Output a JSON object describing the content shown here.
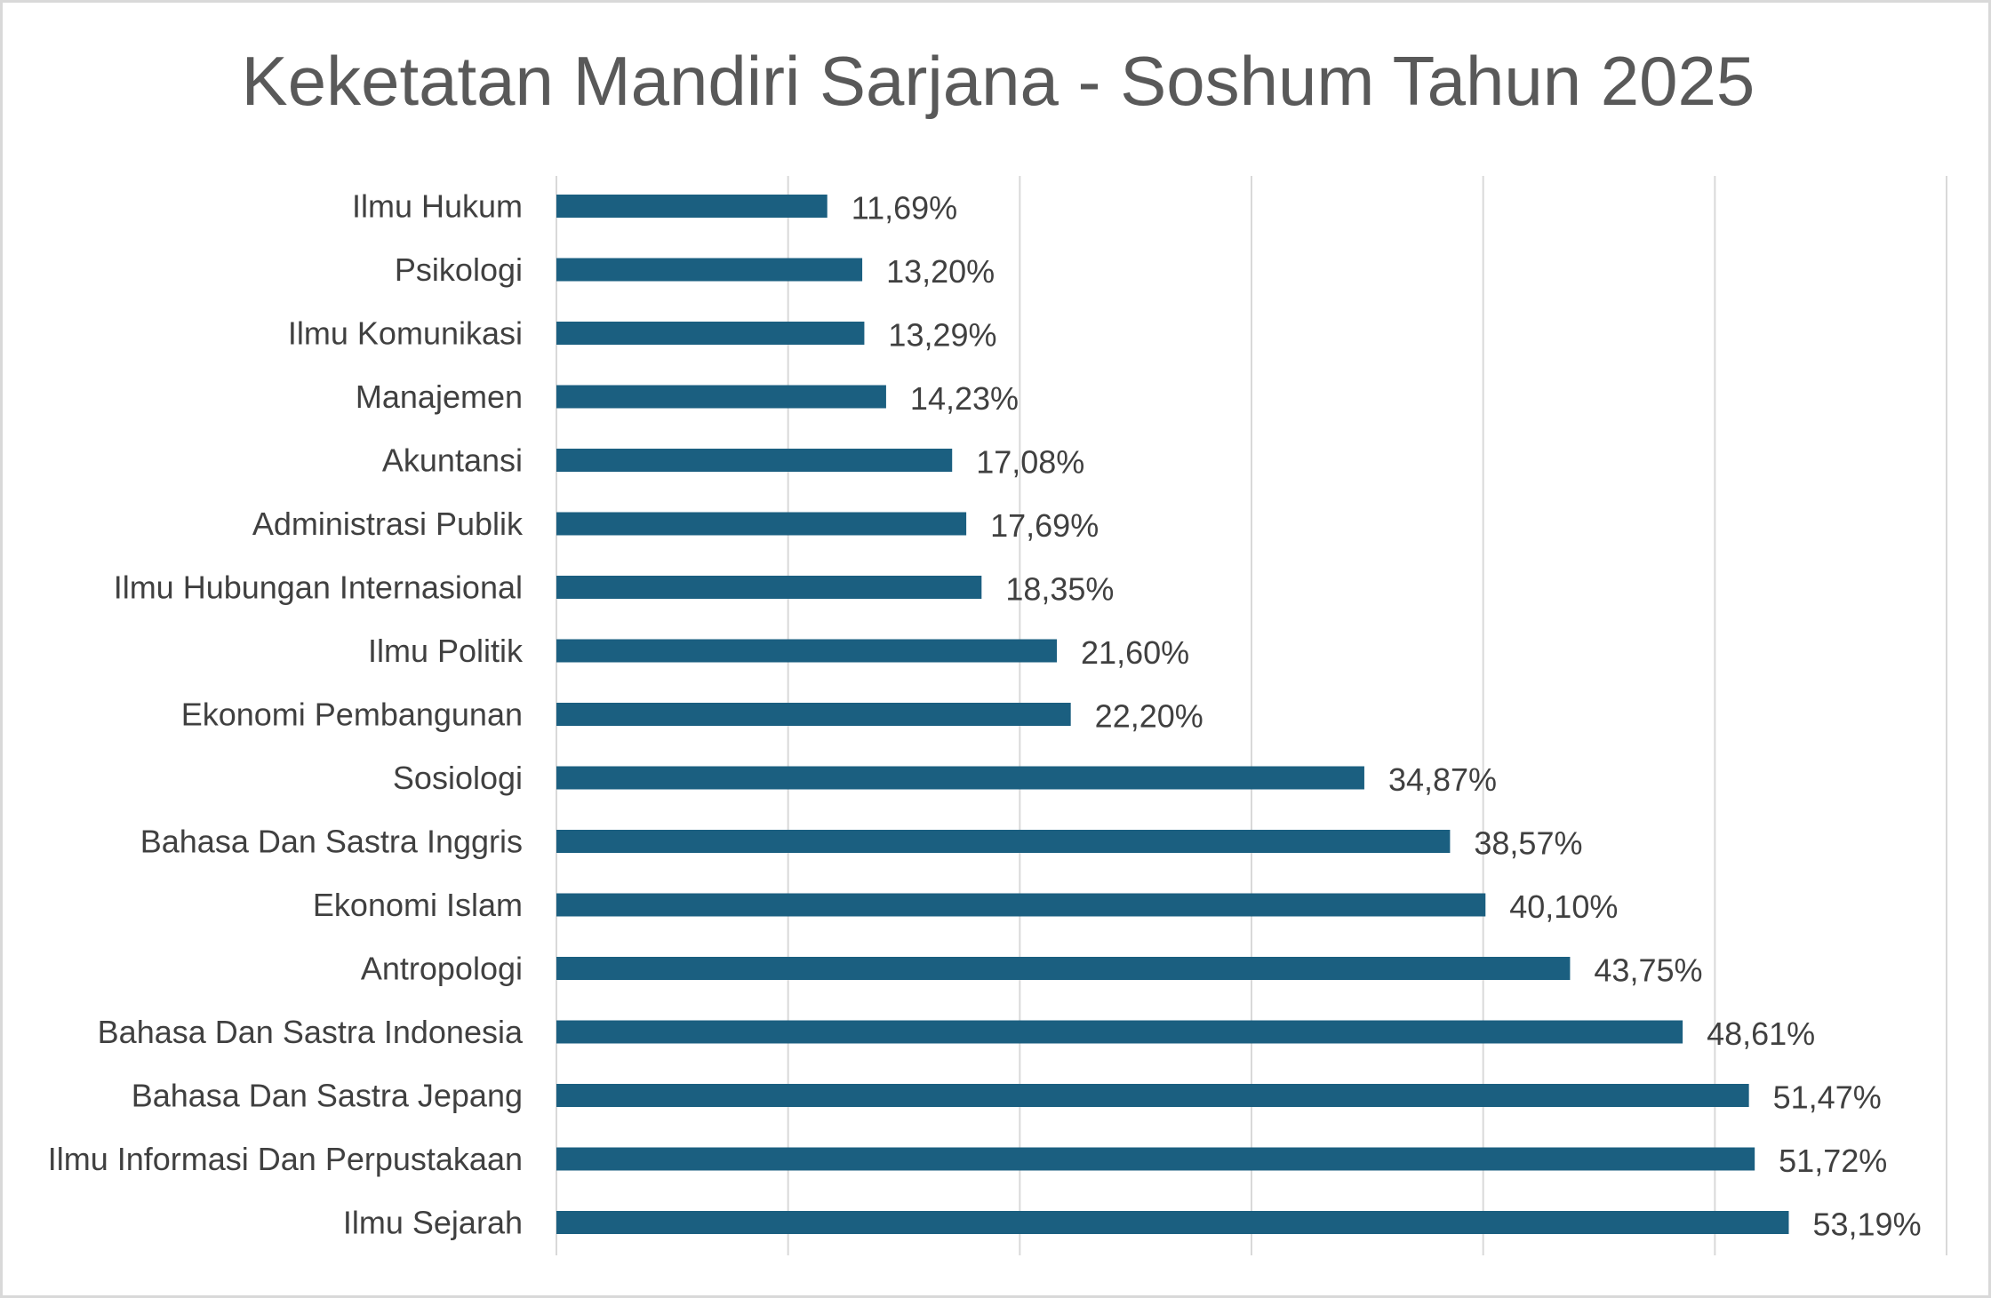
{
  "chart_data": {
    "type": "bar",
    "orientation": "horizontal",
    "title": "Keketatan Mandiri Sarjana - Soshum Tahun 2025",
    "xlabel": "",
    "ylabel": "",
    "xlim": [
      0,
      60
    ],
    "grid": true,
    "legend": "none",
    "bar_color": "#1b5f80",
    "categories": [
      "Ilmu Hukum",
      "Psikologi",
      "Ilmu Komunikasi",
      "Manajemen",
      "Akuntansi",
      "Administrasi Publik",
      "Ilmu Hubungan Internasional",
      "Ilmu Politik",
      "Ekonomi Pembangunan",
      "Sosiologi",
      "Bahasa Dan Sastra Inggris",
      "Ekonomi Islam",
      "Antropologi",
      "Bahasa Dan Sastra Indonesia",
      "Bahasa Dan Sastra Jepang",
      "Ilmu Informasi Dan Perpustakaan",
      "Ilmu Sejarah"
    ],
    "values": [
      11.69,
      13.2,
      13.29,
      14.23,
      17.08,
      17.69,
      18.35,
      21.6,
      22.2,
      34.87,
      38.57,
      40.1,
      43.75,
      48.61,
      51.47,
      51.72,
      53.19
    ],
    "data_labels": [
      "11,69%",
      "13,20%",
      "13,29%",
      "14,23%",
      "17,08%",
      "17,69%",
      "18,35%",
      "21,60%",
      "22,20%",
      "34,87%",
      "38,57%",
      "40,10%",
      "43,75%",
      "48,61%",
      "51,47%",
      "51,72%",
      "53,19%"
    ]
  }
}
